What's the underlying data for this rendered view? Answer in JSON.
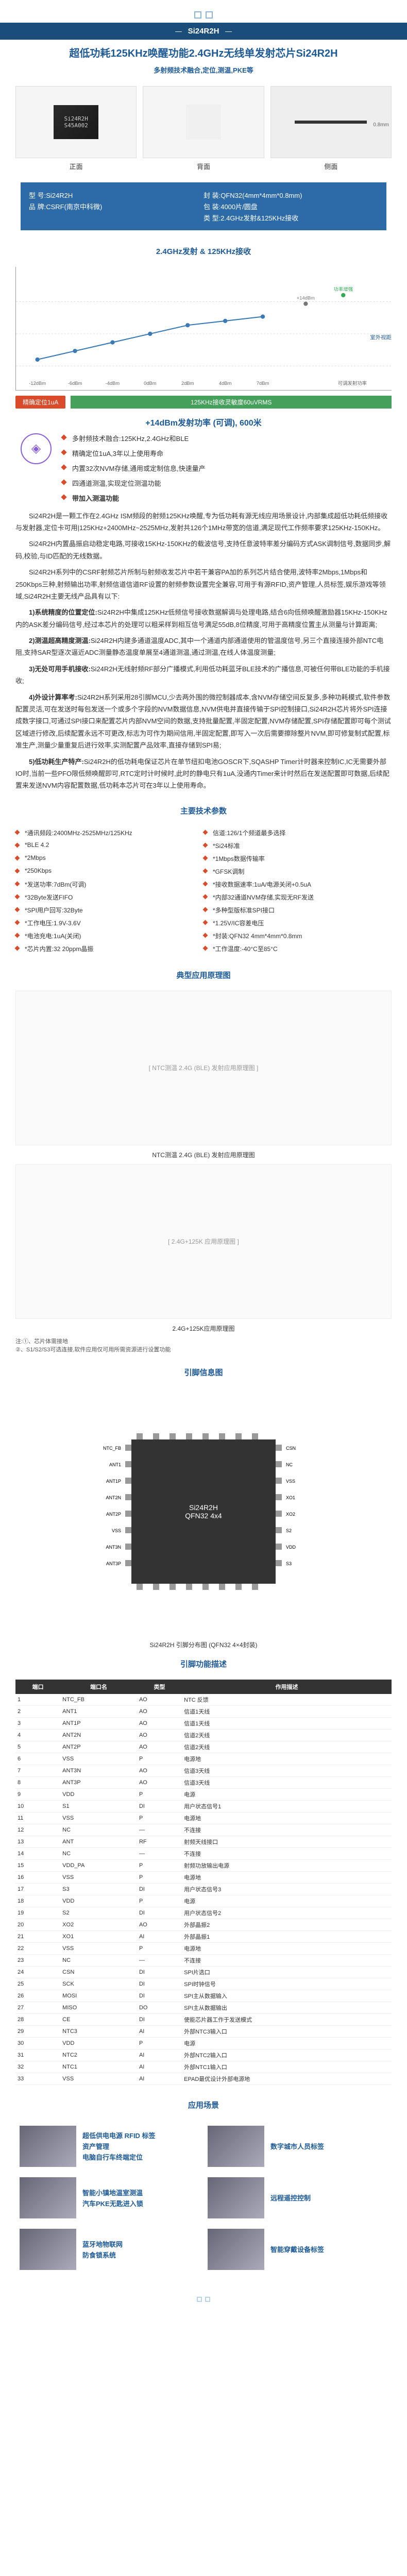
{
  "header": {
    "chip_name": "Si24R2H"
  },
  "title": {
    "main": "超低功耗125KHz唤醒功能2.4GHz无线单发射芯片Si24R2H",
    "sub": "多射频技术融合,定位,测温,PKE等"
  },
  "chips": {
    "front": {
      "line1": "Si24R2H",
      "line2": "S45A002",
      "label": "正面"
    },
    "back": {
      "label": "背面"
    },
    "side": {
      "label": "侧面",
      "dim": "0.8mm"
    }
  },
  "specs": {
    "left": [
      {
        "k": "型 号",
        "v": "Si24R2H"
      },
      {
        "k": "品 牌",
        "v": "CSRF(南京中科微)"
      }
    ],
    "right": [
      {
        "k": "封 装",
        "v": "QFN32(4mm*4mm*0.8mm)"
      },
      {
        "k": "包 装",
        "v": "4000片/圆盘"
      },
      {
        "k": "类 型",
        "v": "2.4GHz发射&125KHz接收"
      }
    ]
  },
  "section_chart": "2.4GHz发射 & 125KHz接收",
  "chart": {
    "y_labels": [
      "10m",
      "20m",
      "40m"
    ],
    "x_labels": [
      "-12dBm",
      "-6dBm",
      "-4dBm",
      "0dBm",
      "2dBm",
      "4dBm",
      "7dBm",
      "可调发射功率"
    ],
    "line_color": "#3b7ab5",
    "values": [
      8,
      12,
      16,
      20,
      24,
      26,
      28
    ],
    "extras": [
      {
        "label": "+14dBm",
        "color": "#777",
        "val": 34
      },
      {
        "label": "功率增强",
        "color": "#3a5",
        "val": 38
      }
    ],
    "note": "室外视距环境",
    "badges": [
      {
        "text": "精确定位1uA",
        "color": "#d94b2b"
      },
      {
        "text": "",
        "color": "#eee"
      }
    ],
    "green_bar": "125KHz接收灵敏度60uVRMS"
  },
  "highlight": "+14dBm发射功率 (可调),  600米",
  "bullets": [
    "多射频技术融合:125KHz,2.4GHz和BLE",
    "精确定位1uA,3年以上使用寿命",
    "内置32次NVM存储,通用或定制信息,快速量产",
    "四通道测温,实现定位测温功能",
    "带加入测温功能"
  ],
  "paragraphs": [
    {
      "b": "",
      "text": "Si24R2H是一颗工作在2.4GHz ISM频段的射频125KHz唤醒,专为低功耗有源无线应用场景设计,内部集成超低功耗低频接收与发射器,定位卡可用|125KHz+2400MHz~2525MHz,发射共126个1MHz带宽的信道,满足现代工作频率要求125KHz-150KHz。"
    },
    {
      "b": "",
      "text": "Si24R2H内置晶振启动稳定电路,可接收15KHz-150KHz的载波信号,支持任意波特率差分编码方式ASK调制信号,数据同步,解码,校验,与ID匹配的无线数据。"
    },
    {
      "b": "",
      "text": "Si24R2H系列中的CSRF射频芯片所制与射频收发芯片中若干兼容PA加的系列芯片结合使用,波特率2Mbps,1Mbps和250Kbps三种,射频输出功率,射频信道信道RF设置的射频参数设置完全兼容,可用于有源RFID,资产管理,人员标签,娱乐游戏等领域,Si24R2H主要无线产品具有以下:"
    },
    {
      "b": "1)系统精度的位置定位:",
      "text": "Si24R2H中集成125KHz低频信号接收数据解调与处理电路,结合6向低频唤醒激励器15KHz-150KHz内的ASK差分编码信号,经过本芯片的处理可以粗采样到相互信号满足55dB,8位精度,可用于高精度位置主从测量与计算距离;"
    },
    {
      "b": "2)测温超高精度测温:",
      "text": "Si24R2H内建多通道温度ADC,其中一个通道内部通道使用的管温度信号,另三个直接连接外部NTC电阻,支持SAR型逐次逼近ADC测量静态温度单展至4通道测温,通过测温,在线人体温度测量;"
    },
    {
      "b": "3)无处可用手机接收:",
      "text": "Si24R2H无线射频RF部分广播模式,利用低功耗蓝牙BLE技术的广播信息,可被任何带BLE功能的手机接收;"
    },
    {
      "b": "4)外设计算率考:",
      "text": "Si24R2H系列采用28引脚MCU,少去两外围的微控制器成本,含NVM存储空间反复多,多种功耗模式,软件参数配置灵活,可在发送时每包发送一个或多个字段的NVM数据信息,NVM供电并直接传输于SPI控制接口,Si24R2H芯片将外SPI连接成数字接口,可通过SPI接口来配置芯片内部NVM空间的数据,支持批量配置,半固定配置,NVM存储配置,SPI存储配置即可每个测试区域进行修改,后续配置永远不可更改,标志为可作为期间信用,半固定配置,即写入一次后需要擦除整片NVM,即可修复制式配置,标准生产,测量少量重复后进行效率,实测配置产品效率,直接存储到SPI易;"
    },
    {
      "b": "5)低功耗生产特产:",
      "text": "Si24R2H的低功耗电保证芯片在单节纽扣电池GOSCR下,SQASHP Timer计时器来控制IC,IC无需要外部IO时,当前一些PFO限低频唤醒即可,RTC定时计时候时,此时的静电只有1uA,没通内Timer来计时然后在发送配置即可数据,后续配置来发送NVM内容配置数据,低功耗本芯片可在3年以上使用寿命。"
    }
  ],
  "section_params": "主要技术参数",
  "params": [
    [
      "*通讯频段:2400MHz-2525MHz/125KHz",
      "信道:126/1个频道最多选择"
    ],
    [
      "*BLE 4.2",
      "*Si24标准"
    ],
    [
      "*2Mbps",
      "*1Mbps数据传输率"
    ],
    [
      "*250Kbps",
      "*GFSK调制"
    ],
    [
      "*发送功率:7dBm(可调)",
      "*接收数据速率:1uA/电源关闭+0.5uA"
    ],
    [
      "*32Byte发送FIFO",
      "*内部32通道NVM存储,实现无RF发送"
    ],
    [
      "*SPI用户回写:32Byte",
      "*多种型版标准SPI接口"
    ],
    [
      "*工作电压:1.9V-3.6V",
      "*1.25V/IC容差电压"
    ],
    [
      "*电池充电:1uA(关闭)",
      "*封装:QFN32 4mm*4mm*0.8mm"
    ],
    [
      "*芯片内置:32 20ppm晶振",
      "*工作温度:-40°C至85°C"
    ]
  ],
  "section_diagrams": "典型应用原理图",
  "diagrams": [
    {
      "placeholder": "[ NTC测温 2.4G (BLE) 发射应用原理图 ]",
      "label": "NTC测温 2.4G (BLE) 发射应用原理图"
    },
    {
      "placeholder": "[ 2.4G+125K 应用原理图 ]",
      "label": "2.4G+125K应用原理图"
    }
  ],
  "diagram_note": "注:①、芯片体需接地\n ②、S1/S2/S3可选连接,软件应用仅可用所需资源进行设置功能",
  "section_pins": "引脚信息图",
  "pin_chip": {
    "name": "Si24R2H",
    "pkg": "QFN32 4x4"
  },
  "pin_label": "Si24R2H 引脚分布图 (QFN32 4×4封装)",
  "section_pin_desc": "引脚功能描述",
  "pin_table": {
    "headers": [
      "端口",
      "端口名",
      "类型",
      "作用描述"
    ],
    "rows": [
      [
        "1",
        "NTC_FB",
        "AO",
        "NTC 反馈"
      ],
      [
        "2",
        "ANT1",
        "AO",
        "信道1天线"
      ],
      [
        "3",
        "ANT1P",
        "AO",
        "信道1天线"
      ],
      [
        "4",
        "ANT2N",
        "AO",
        "信道2天线"
      ],
      [
        "5",
        "ANT2P",
        "AO",
        "信道2天线"
      ],
      [
        "6",
        "VSS",
        "P",
        "电源地"
      ],
      [
        "7",
        "ANT3N",
        "AO",
        "信道3天线"
      ],
      [
        "8",
        "ANT3P",
        "AO",
        "信道3天线"
      ],
      [
        "9",
        "VDD",
        "P",
        "电源"
      ],
      [
        "10",
        "S1",
        "DI",
        "用户状态信号1"
      ],
      [
        "11",
        "VSS",
        "P",
        "电源地"
      ],
      [
        "12",
        "NC",
        "—",
        "不连接"
      ],
      [
        "13",
        "ANT",
        "RF",
        "射频天线接口"
      ],
      [
        "14",
        "NC",
        "—",
        "不连接"
      ],
      [
        "15",
        "VDD_PA",
        "P",
        "射频功放输出电源"
      ],
      [
        "16",
        "VSS",
        "P",
        "电源地"
      ],
      [
        "17",
        "S3",
        "DI",
        "用户状态信号3"
      ],
      [
        "18",
        "VDD",
        "P",
        "电源"
      ],
      [
        "19",
        "S2",
        "DI",
        "用户状态信号2"
      ],
      [
        "20",
        "XO2",
        "AO",
        "外部晶振2"
      ],
      [
        "21",
        "XO1",
        "AI",
        "外部晶振1"
      ],
      [
        "22",
        "VSS",
        "P",
        "电源地"
      ],
      [
        "23",
        "NC",
        "—",
        "不连接"
      ],
      [
        "24",
        "CSN",
        "DI",
        "SPI片选口"
      ],
      [
        "25",
        "SCK",
        "DI",
        "SPI时钟信号"
      ],
      [
        "26",
        "MOSI",
        "DI",
        "SPI主从数据输入"
      ],
      [
        "27",
        "MISO",
        "DO",
        "SPI主从数据输出"
      ],
      [
        "28",
        "CE",
        "DI",
        "使能芯片器工作于发送模式"
      ],
      [
        "29",
        "NTC3",
        "AI",
        "外部NTC3输入口"
      ],
      [
        "30",
        "VDD",
        "P",
        "电源"
      ],
      [
        "31",
        "NTC2",
        "AI",
        "外部NTC2输入口"
      ],
      [
        "32",
        "NTC1",
        "AI",
        "外部NTC1输入口"
      ],
      [
        "33",
        "VSS",
        "AI",
        "EPAD最优设计外部电源地"
      ]
    ]
  },
  "section_apps": "应用场景",
  "apps": [
    {
      "lines": [
        "超低供电电源 RFID 标签",
        "资产管理",
        "电脑自行车终端定位"
      ]
    },
    {
      "lines": [
        "数字城市人员标签"
      ]
    },
    {
      "lines": [
        "智能小镇地温室测温",
        "汽车PKE无匙进入锁"
      ]
    },
    {
      "lines": [
        "远程遥控控制"
      ]
    },
    {
      "lines": [
        "蓝牙地物联网",
        "防食锁系统"
      ]
    },
    {
      "lines": [
        "智能穿戴设备标签"
      ]
    }
  ]
}
